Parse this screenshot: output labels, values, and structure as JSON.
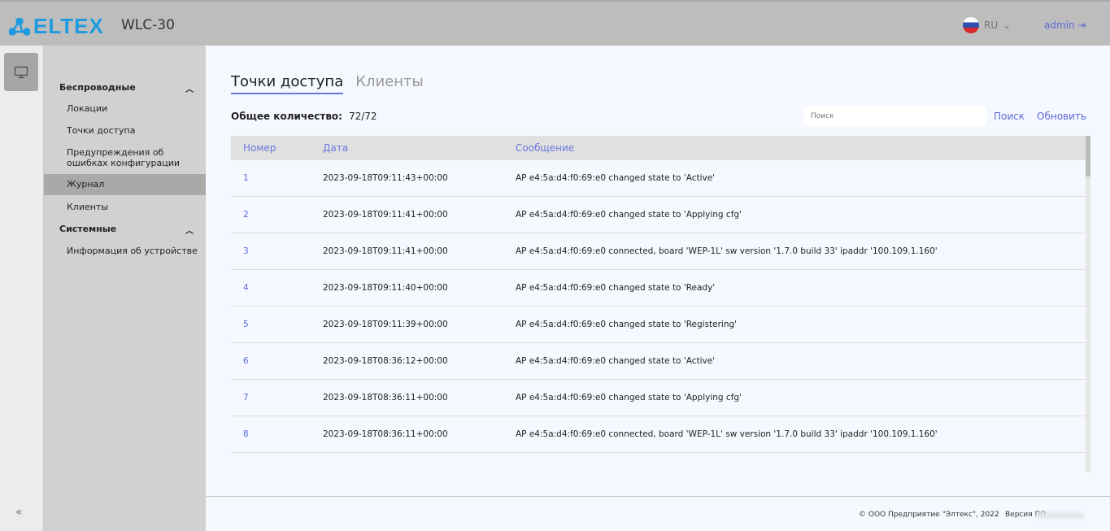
{
  "header": {
    "logo": "ELTEX",
    "model": "WLC-30",
    "lang": "RU",
    "user": "admin"
  },
  "sidebar": {
    "groups": [
      {
        "label": "Беспроводные",
        "items": [
          "Локации",
          "Точки доступа",
          "Предупреждения об ошибках конфигурации",
          "Журнал",
          "Клиенты"
        ]
      },
      {
        "label": "Системные",
        "items": [
          "Информация об устройстве"
        ]
      }
    ],
    "selected": "Журнал"
  },
  "main": {
    "tabs": [
      {
        "label": "Точки доступа",
        "active": true
      },
      {
        "label": "Клиенты",
        "active": false
      }
    ],
    "total_label": "Общее количество:",
    "total_value": "72/72",
    "search_placeholder": "Поиск",
    "search_button": "Поиск",
    "refresh_button": "Обновить",
    "columns": [
      "Номер",
      "Дата",
      "Сообщение"
    ],
    "rows": [
      [
        "1",
        "2023-09-18T09:11:43+00:00",
        "AP e4:5a:d4:f0:69:e0 changed state to 'Active'"
      ],
      [
        "2",
        "2023-09-18T09:11:41+00:00",
        "AP e4:5a:d4:f0:69:e0 changed state to 'Applying cfg'"
      ],
      [
        "3",
        "2023-09-18T09:11:41+00:00",
        "AP e4:5a:d4:f0:69:e0 connected, board 'WEP-1L' sw version '1.7.0 build 33' ipaddr '100.109.1.160'"
      ],
      [
        "4",
        "2023-09-18T09:11:40+00:00",
        "AP e4:5a:d4:f0:69:e0 changed state to 'Ready'"
      ],
      [
        "5",
        "2023-09-18T09:11:39+00:00",
        "AP e4:5a:d4:f0:69:e0 changed state to 'Registering'"
      ],
      [
        "6",
        "2023-09-18T08:36:12+00:00",
        "AP e4:5a:d4:f0:69:e0 changed state to 'Active'"
      ],
      [
        "7",
        "2023-09-18T08:36:11+00:00",
        "AP e4:5a:d4:f0:69:e0 changed state to 'Applying cfg'"
      ],
      [
        "8",
        "2023-09-18T08:36:11+00:00",
        "AP e4:5a:d4:f0:69:e0 connected, board 'WEP-1L' sw version '1.7.0 build 33' ipaddr '100.109.1.160'"
      ]
    ]
  },
  "footer": {
    "copyright": "© ООО Предприятие \"Элтекс\", 2022",
    "version_label": "Версия ПО"
  },
  "colors": {
    "accent": "#5b6ad8",
    "logo": "#1e9be0",
    "header": "#bdbdbd",
    "sidebar": "#d1d1d1"
  }
}
